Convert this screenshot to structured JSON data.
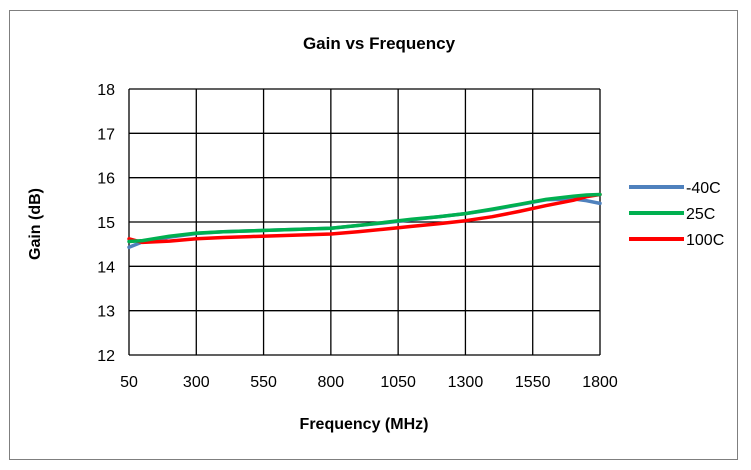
{
  "chart_data": {
    "type": "line",
    "title": "Gain vs Frequency",
    "xlabel": "Frequency (MHz)",
    "ylabel": "Gain (dB)",
    "xlim": [
      50,
      1800
    ],
    "ylim": [
      12,
      18
    ],
    "xticks": [
      "50",
      "300",
      "550",
      "800",
      "1050",
      "1300",
      "1550",
      "1800"
    ],
    "yticks": [
      "12",
      "13",
      "14",
      "15",
      "16",
      "17",
      "18"
    ],
    "grid": true,
    "legend_position": "right",
    "series": [
      {
        "name": "-40C",
        "color": "#4f81bd",
        "x": [
          50,
          100,
          200,
          300,
          400,
          500,
          600,
          700,
          800,
          900,
          1000,
          1100,
          1200,
          1300,
          1400,
          1500,
          1600,
          1700,
          1750,
          1800
        ],
        "y": [
          14.43,
          14.55,
          14.66,
          14.74,
          14.78,
          14.8,
          14.82,
          14.84,
          14.86,
          14.92,
          14.98,
          15.05,
          15.12,
          15.19,
          15.28,
          15.39,
          15.5,
          15.52,
          15.48,
          15.42
        ]
      },
      {
        "name": "25C",
        "color": "#00b050",
        "x": [
          50,
          100,
          200,
          300,
          400,
          500,
          600,
          700,
          800,
          900,
          1000,
          1100,
          1200,
          1300,
          1400,
          1500,
          1600,
          1700,
          1750,
          1800
        ],
        "y": [
          14.56,
          14.58,
          14.68,
          14.75,
          14.78,
          14.8,
          14.82,
          14.84,
          14.86,
          14.92,
          14.99,
          15.06,
          15.12,
          15.19,
          15.29,
          15.4,
          15.51,
          15.58,
          15.61,
          15.62
        ]
      },
      {
        "name": "100C",
        "color": "#ff0000",
        "x": [
          50,
          100,
          200,
          300,
          400,
          500,
          600,
          700,
          800,
          900,
          1000,
          1100,
          1200,
          1300,
          1400,
          1500,
          1600,
          1700,
          1750,
          1800
        ],
        "y": [
          14.62,
          14.54,
          14.57,
          14.62,
          14.65,
          14.67,
          14.69,
          14.71,
          14.73,
          14.78,
          14.84,
          14.9,
          14.96,
          15.03,
          15.12,
          15.24,
          15.37,
          15.49,
          15.57,
          15.62
        ]
      }
    ]
  }
}
